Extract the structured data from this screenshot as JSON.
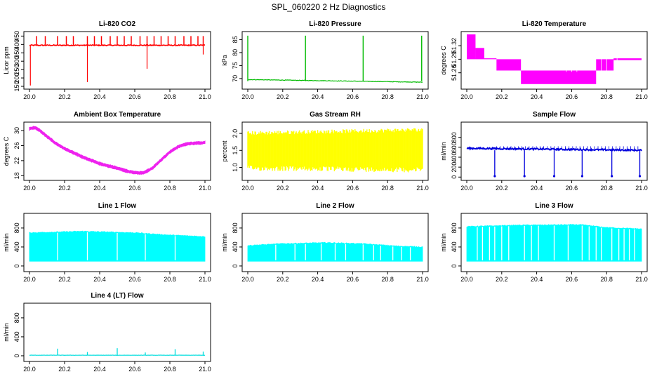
{
  "figure": {
    "title": "SPL_060220  2 Hz Diagnostics"
  },
  "chart_data": [
    {
      "type": "line",
      "title": "Li-820 CO2",
      "ylabel": "Licor ppm",
      "color": "#ff0000",
      "xlim": [
        20.0,
        21.0
      ],
      "ylim": [
        150,
        460
      ],
      "xticks": [
        "20.0",
        "20.2",
        "20.4",
        "20.6",
        "20.8",
        "21.0"
      ],
      "yticks": [
        "150",
        "200",
        "250",
        "300",
        "350",
        "400",
        "450"
      ],
      "series": [
        {
          "baseline": 395,
          "noise": 6,
          "spikes_up": [
            20.04,
            20.09,
            20.16,
            20.21,
            20.25,
            20.33,
            20.37,
            20.41,
            20.46,
            20.5,
            20.54,
            20.58,
            20.63,
            20.67,
            20.71,
            20.75,
            20.79,
            20.83,
            20.88,
            20.92,
            20.96,
            20.99
          ],
          "spike_up_to": 450,
          "spikes_down": [
            {
              "x": 20.005,
              "y": 155
            },
            {
              "x": 20.33,
              "y": 175
            },
            {
              "x": 20.67,
              "y": 255
            },
            {
              "x": 20.99,
              "y": 340
            }
          ]
        }
      ]
    },
    {
      "type": "line",
      "title": "Li-820 Pressure",
      "ylabel": "kPa",
      "color": "#00bb00",
      "xlim": [
        20.0,
        21.0
      ],
      "ylim": [
        67,
        87
      ],
      "xticks": [
        "20.0",
        "20.2",
        "20.4",
        "20.6",
        "20.8",
        "21.0"
      ],
      "yticks": [
        "70",
        "75",
        "80",
        "85"
      ],
      "series": [
        {
          "start": 69.6,
          "end": 68.6,
          "noise": 0.2,
          "spikes": [
            20.0,
            20.33,
            20.66,
            20.995
          ],
          "spike_to": 86.5
        }
      ]
    },
    {
      "type": "area",
      "title": "Li-820 Temperature",
      "ylabel": "degrees C",
      "color": "#ff00ff",
      "xlim": [
        20.0,
        21.0
      ],
      "ylim": [
        51.23,
        51.345
      ],
      "xticks": [
        "20.0",
        "20.2",
        "20.4",
        "20.6",
        "20.8",
        "21.0"
      ],
      "yticks": [
        "51.26",
        "51.29",
        "51.32"
      ],
      "bands": [
        {
          "x0": 20.0,
          "x1": 20.05,
          "lo": 51.29,
          "hi": 51.345
        },
        {
          "x0": 20.05,
          "x1": 20.1,
          "lo": 51.29,
          "hi": 51.315
        },
        {
          "x0": 20.1,
          "x1": 20.17,
          "lo": 51.29,
          "hi": 51.292
        },
        {
          "x0": 20.17,
          "x1": 20.31,
          "lo": 51.265,
          "hi": 51.29
        },
        {
          "x0": 20.31,
          "x1": 20.74,
          "lo": 51.235,
          "hi": 51.265
        },
        {
          "x0": 20.74,
          "x1": 20.84,
          "lo": 51.265,
          "hi": 51.29
        },
        {
          "x0": 20.84,
          "x1": 21.0,
          "lo": 51.288,
          "hi": 51.292
        }
      ]
    },
    {
      "type": "line",
      "title": "Ambient Box Temperature",
      "ylabel": "degrees C",
      "color": "#ee22ee",
      "xlim": [
        20.0,
        21.0
      ],
      "ylim": [
        17.5,
        31.5
      ],
      "xticks": [
        "20.0",
        "20.2",
        "20.4",
        "20.6",
        "20.8",
        "21.0"
      ],
      "yticks": [
        "18",
        "22",
        "26",
        "30"
      ],
      "series": [
        {
          "points": [
            [
              20.0,
              30.5
            ],
            [
              20.03,
              30.8
            ],
            [
              20.06,
              30.0
            ],
            [
              20.1,
              28.4
            ],
            [
              20.15,
              26.6
            ],
            [
              20.2,
              25.2
            ],
            [
              20.3,
              23.0
            ],
            [
              20.4,
              21.2
            ],
            [
              20.5,
              20.0
            ],
            [
              20.55,
              19.3
            ],
            [
              20.6,
              18.8
            ],
            [
              20.65,
              18.7
            ],
            [
              20.7,
              20.0
            ],
            [
              20.75,
              22.2
            ],
            [
              20.8,
              24.3
            ],
            [
              20.85,
              25.8
            ],
            [
              20.9,
              26.5
            ],
            [
              21.0,
              26.8
            ]
          ],
          "noise": 0.45
        }
      ]
    },
    {
      "type": "area",
      "title": "Gas Stream RH",
      "ylabel": "percent",
      "color": "#ffff00",
      "xlim": [
        20.0,
        21.0
      ],
      "ylim": [
        0.7,
        2.25
      ],
      "xticks": [
        "20.0",
        "20.2",
        "20.4",
        "20.6",
        "20.8",
        "21.0"
      ],
      "yticks": [
        "1.0",
        "1.5",
        "2.0"
      ],
      "series": [
        {
          "lo_start": 1.05,
          "lo_end": 1.0,
          "hi_start": 1.95,
          "hi_end": 2.05,
          "lo_min": 0.85,
          "hi_max": 2.15
        }
      ]
    },
    {
      "type": "line",
      "title": "Sample Flow",
      "ylabel": "ml/min",
      "color": "#0000dd",
      "xlim": [
        20.0,
        21.0
      ],
      "ylim": [
        -10,
        1050
      ],
      "xticks": [
        "20.0",
        "20.2",
        "20.4",
        "20.6",
        "20.8",
        "21.0"
      ],
      "yticks": [
        "0",
        "200",
        "400",
        "600",
        "800"
      ],
      "series": [
        {
          "start": 580,
          "end": 540,
          "noise": 15,
          "dips": [
            20.16,
            20.33,
            20.5,
            20.66,
            20.83,
            20.99
          ],
          "dip_to": 10
        }
      ]
    },
    {
      "type": "area",
      "title": "Line 1 Flow",
      "ylabel": "ml/min",
      "color": "#00ffff",
      "xlim": [
        20.0,
        21.0
      ],
      "ylim": [
        -60,
        1050
      ],
      "xticks": [
        "20.0",
        "20.2",
        "20.4",
        "20.6",
        "20.8",
        "21.0"
      ],
      "yticks": [
        "0",
        "400",
        "800"
      ],
      "series": [
        {
          "lo": 100,
          "hi_points": [
            [
              20.0,
              700
            ],
            [
              20.3,
              730
            ],
            [
              20.6,
              700
            ],
            [
              20.8,
              650
            ],
            [
              21.0,
              620
            ]
          ],
          "gaps": [
            20.16,
            20.33,
            20.5,
            20.66,
            20.83
          ]
        }
      ]
    },
    {
      "type": "area",
      "title": "Line 2 Flow",
      "ylabel": "ml/min",
      "color": "#00ffff",
      "xlim": [
        20.0,
        21.0
      ],
      "ylim": [
        -60,
        1050
      ],
      "xticks": [
        "20.0",
        "20.2",
        "20.4",
        "20.6",
        "20.8",
        "21.0"
      ],
      "yticks": [
        "0",
        "400",
        "800"
      ],
      "series": [
        {
          "lo": 100,
          "hi_points": [
            [
              20.0,
              430
            ],
            [
              20.2,
              470
            ],
            [
              20.45,
              490
            ],
            [
              20.65,
              470
            ],
            [
              20.85,
              420
            ],
            [
              21.0,
              400
            ]
          ],
          "gaps": [
            20.16,
            20.27,
            20.33,
            20.42,
            20.5,
            20.56,
            20.66,
            20.72,
            20.76,
            20.83,
            20.88,
            20.93
          ]
        }
      ]
    },
    {
      "type": "area",
      "title": "Line 3 Flow",
      "ylabel": "ml/min",
      "color": "#00ffff",
      "xlim": [
        20.0,
        21.0
      ],
      "ylim": [
        -60,
        1050
      ],
      "xticks": [
        "20.0",
        "20.2",
        "20.4",
        "20.6",
        "20.8",
        "21.0"
      ],
      "yticks": [
        "0",
        "400",
        "800"
      ],
      "series": [
        {
          "lo": 100,
          "hi_points": [
            [
              20.0,
              830
            ],
            [
              20.3,
              860
            ],
            [
              20.65,
              870
            ],
            [
              20.8,
              810
            ],
            [
              21.0,
              780
            ]
          ],
          "gaps": [
            20.06,
            20.09,
            20.13,
            20.16,
            20.2,
            20.24,
            20.33,
            20.37,
            20.41,
            20.5,
            20.58,
            20.66,
            20.7,
            20.74,
            20.77,
            20.83,
            20.87,
            20.9,
            20.93,
            20.96
          ]
        }
      ]
    },
    {
      "type": "line",
      "title": "Line 4 (LT) Flow",
      "ylabel": "ml/min",
      "color": "#00dddd",
      "xlim": [
        20.0,
        21.0
      ],
      "ylim": [
        -60,
        1050
      ],
      "xticks": [
        "20.0",
        "20.2",
        "20.4",
        "20.6",
        "20.8",
        "21.0"
      ],
      "yticks": [
        "0",
        "400",
        "800"
      ],
      "series": [
        {
          "baseline": 12,
          "noise": 5,
          "spikes": [
            {
              "x": 20.16,
              "y": 150
            },
            {
              "x": 20.33,
              "y": 80
            },
            {
              "x": 20.5,
              "y": 160
            },
            {
              "x": 20.66,
              "y": 70
            },
            {
              "x": 20.83,
              "y": 140
            },
            {
              "x": 20.99,
              "y": 90
            }
          ]
        }
      ]
    }
  ]
}
